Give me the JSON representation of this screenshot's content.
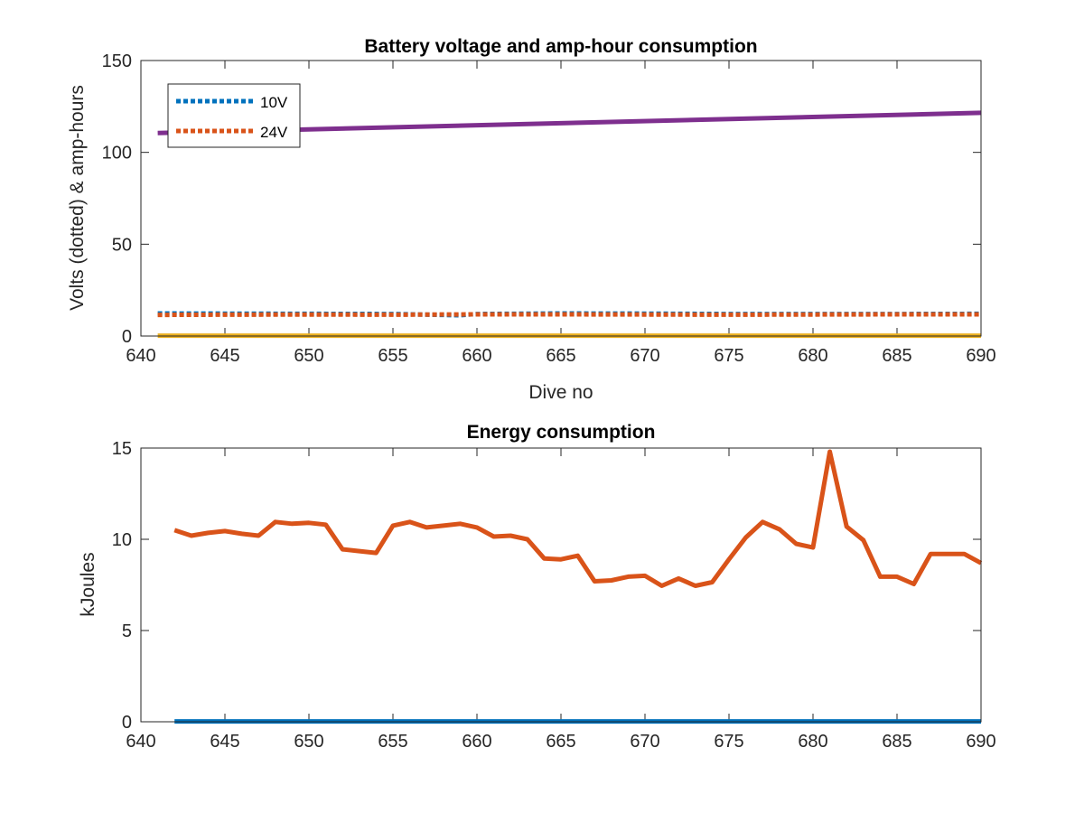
{
  "chart_data": [
    {
      "type": "line",
      "title": "Battery voltage and amp-hour consumption",
      "xlabel": "Dive no",
      "ylabel": "Volts (dotted) & amp-hours",
      "xlim": [
        640,
        690
      ],
      "ylim": [
        0,
        150
      ],
      "xticks": [
        "640",
        "645",
        "650",
        "655",
        "660",
        "665",
        "670",
        "675",
        "680",
        "685",
        "690"
      ],
      "yticks": [
        "0",
        "50",
        "100",
        "150"
      ],
      "legend": {
        "placement": "top-left",
        "entries": [
          "10V",
          "24V"
        ]
      },
      "series": [
        {
          "name": "10V",
          "style": "dotted",
          "color": "#0072bd",
          "x": [
            641,
            645,
            650,
            655,
            659,
            660,
            665,
            670,
            675,
            680,
            685,
            690
          ],
          "y": [
            12.3,
            12.2,
            12.1,
            12.0,
            11.3,
            12.0,
            12.3,
            12.2,
            12.0,
            12.0,
            12.0,
            12.1
          ]
        },
        {
          "name": "24V",
          "style": "dotted",
          "color": "#d95319",
          "x": [
            641,
            645,
            650,
            655,
            660,
            665,
            670,
            675,
            680,
            685,
            690
          ],
          "y": [
            11.5,
            11.6,
            11.7,
            11.6,
            11.8,
            11.8,
            11.7,
            11.6,
            11.7,
            11.8,
            11.8
          ]
        },
        {
          "style": "solid",
          "color": "#7e2f8e",
          "x": [
            641,
            690
          ],
          "y": [
            110.5,
            121.5
          ]
        },
        {
          "style": "solid",
          "color": "#edb120",
          "x": [
            641,
            690
          ],
          "y": [
            0.2,
            0.2
          ]
        }
      ]
    },
    {
      "type": "line",
      "title": "Energy consumption",
      "xlabel": "",
      "ylabel": "kJoules",
      "xlim": [
        640,
        690
      ],
      "ylim": [
        0,
        15
      ],
      "xticks": [
        "640",
        "645",
        "650",
        "655",
        "660",
        "665",
        "670",
        "675",
        "680",
        "685",
        "690"
      ],
      "yticks": [
        "0",
        "5",
        "10",
        "15"
      ],
      "series": [
        {
          "style": "solid",
          "color": "#d95319",
          "x": [
            642,
            643,
            644,
            645,
            646,
            647,
            648,
            649,
            650,
            651,
            652,
            653,
            654,
            655,
            656,
            657,
            658,
            659,
            660,
            661,
            662,
            663,
            664,
            665,
            666,
            667,
            668,
            669,
            670,
            671,
            672,
            673,
            674,
            675,
            676,
            677,
            678,
            679,
            680,
            681,
            682,
            683,
            684,
            685,
            686,
            687,
            688,
            689,
            690
          ],
          "y": [
            10.5,
            10.2,
            10.35,
            10.45,
            10.3,
            10.2,
            10.95,
            10.85,
            10.9,
            10.8,
            9.45,
            9.35,
            9.25,
            10.75,
            10.95,
            10.65,
            10.75,
            10.85,
            10.65,
            10.15,
            10.2,
            10.0,
            8.95,
            8.9,
            9.1,
            7.7,
            7.75,
            7.95,
            8.0,
            7.45,
            7.85,
            7.45,
            7.65,
            8.9,
            10.1,
            10.95,
            10.55,
            9.75,
            9.55,
            14.8,
            10.7,
            9.95,
            7.95,
            7.95,
            7.55,
            9.2,
            9.2,
            9.2,
            8.7
          ]
        },
        {
          "style": "solid",
          "color": "#0072bd",
          "x": [
            642,
            690
          ],
          "y": [
            0.02,
            0.02
          ]
        }
      ]
    }
  ]
}
